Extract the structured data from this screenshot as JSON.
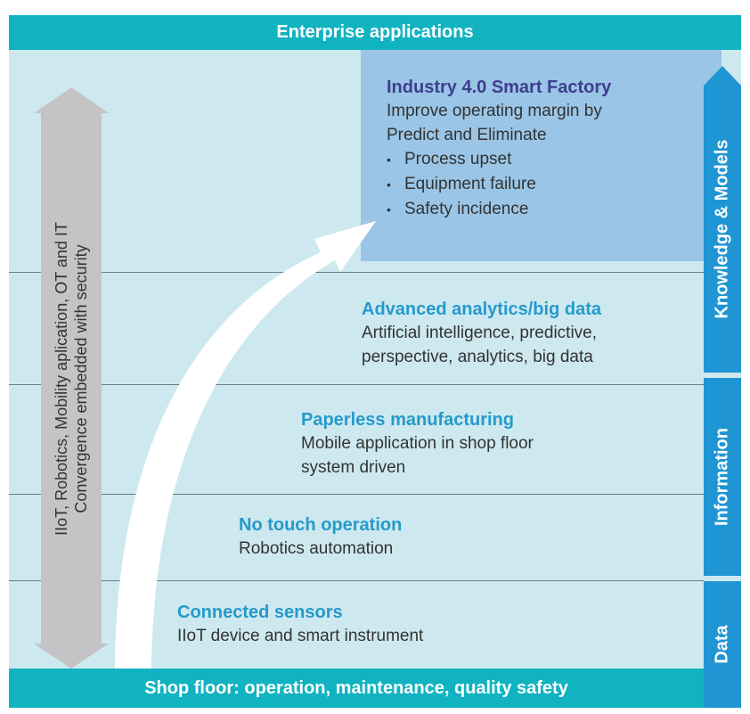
{
  "header": {
    "title": "Enterprise applications"
  },
  "footer": {
    "title": "Shop floor: operation, maintenance, quality safety"
  },
  "side_layers": [
    {
      "label": "Knowledge & Models"
    },
    {
      "label": "Information"
    },
    {
      "label": "Data"
    }
  ],
  "convergence": {
    "line1": "IIoT, Robotics, Mobility aplication, OT and IT",
    "line2": "Convergence embedded with security"
  },
  "levels": {
    "smart_factory": {
      "title": "Industry 4.0 Smart Factory",
      "desc1": "Improve operating margin by",
      "desc2": "Predict and Eliminate",
      "bullets": [
        "Process upset",
        "Equipment failure",
        "Safety incidence"
      ]
    },
    "analytics": {
      "title": "Advanced analytics/big data",
      "desc1": "Artificial intelligence, predictive,",
      "desc2": "perspective, analytics, big data"
    },
    "paperless": {
      "title": "Paperless manufacturing",
      "desc1": "Mobile application in shop floor",
      "desc2": "system driven"
    },
    "no_touch": {
      "title": "No touch operation",
      "desc1": "Robotics automation"
    },
    "sensors": {
      "title": "Connected sensors",
      "desc1": "IIoT device and smart instrument"
    }
  },
  "colors": {
    "teal_bar": "#12b3c1",
    "background": "#cde9ef",
    "highlight_box": "#9ac5e6",
    "side_bar": "#1f95d3",
    "title_blue": "#2699cc",
    "title_purple": "#3e3d8f",
    "grey_arrow": "#c4c3c6"
  }
}
